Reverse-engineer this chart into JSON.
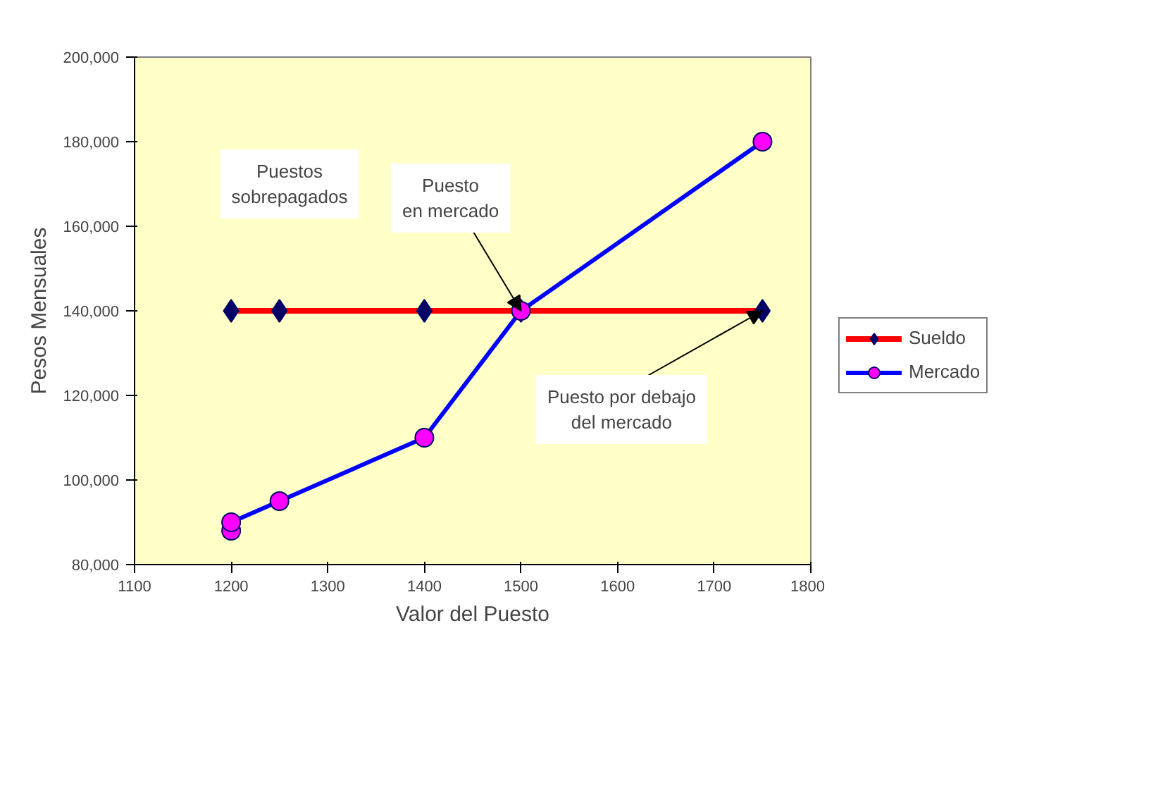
{
  "chart_data": {
    "type": "line",
    "xlabel": "Valor del Puesto",
    "ylabel": "Pesos Mensuales",
    "xlim": [
      1100,
      1800
    ],
    "xticks": [
      1100,
      1200,
      1300,
      1400,
      1500,
      1600,
      1700,
      1800
    ],
    "ylim": [
      80000,
      200000
    ],
    "yticks": [
      {
        "value": 80000,
        "label": "80,000"
      },
      {
        "value": 100000,
        "label": "100,000"
      },
      {
        "value": 120000,
        "label": "120,000"
      },
      {
        "value": 140000,
        "label": "140,000"
      },
      {
        "value": 160000,
        "label": "160,000"
      },
      {
        "value": 180000,
        "label": "180,000"
      },
      {
        "value": 200000,
        "label": "200,000"
      }
    ],
    "series": [
      {
        "name": "Sueldo",
        "color": "#ff0000",
        "marker": "diamond",
        "x": [
          1200,
          1250,
          1400,
          1500,
          1750
        ],
        "values": [
          140000,
          140000,
          140000,
          140000,
          140000
        ]
      },
      {
        "name": "Mercado",
        "color": "#0000ff",
        "marker": "circle",
        "x": [
          1200,
          1200,
          1250,
          1400,
          1500,
          1750
        ],
        "values": [
          88000,
          90000,
          95000,
          110000,
          140000,
          180000
        ]
      }
    ],
    "annotations": [
      "Puestos\nsobrepagados",
      {
        "text": "Puesto\nen mercado",
        "x": 1500,
        "y": 140000
      },
      {
        "text": "Puesto por debajo\ndel mercado",
        "x": 1750,
        "y": 140000
      }
    ],
    "legend": "right",
    "grid": false
  }
}
